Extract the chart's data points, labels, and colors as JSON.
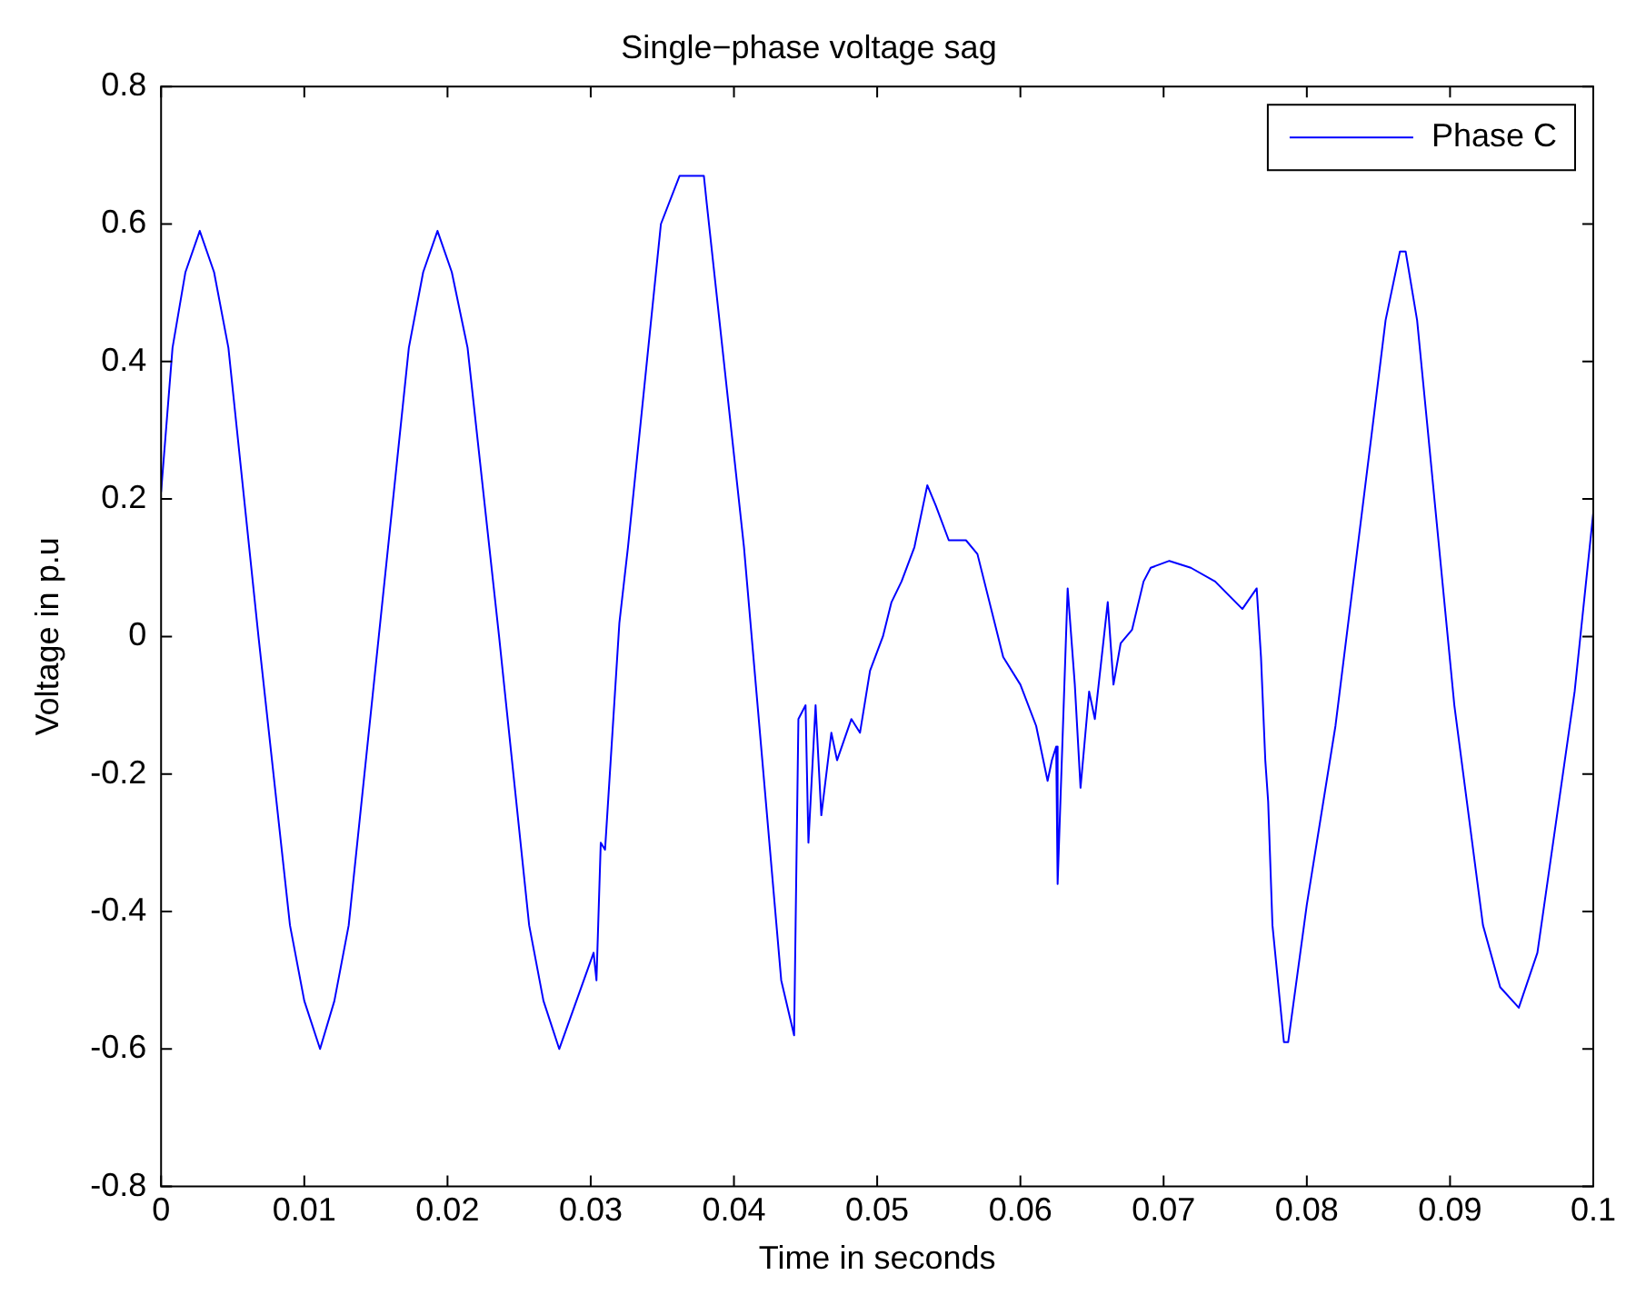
{
  "chart_data": {
    "type": "line",
    "title": "Single−phase voltage sag",
    "xlabel": "Time in seconds",
    "ylabel": "Voltage in p.u",
    "legend": "top right",
    "grid": false,
    "marker": "none",
    "line_style": "solid",
    "xlim": [
      0,
      0.1
    ],
    "xticks": [
      0,
      0.01,
      0.02,
      0.03,
      0.04,
      0.05,
      0.06,
      0.07,
      0.08,
      0.09,
      {
        "value": 0.1,
        "label": "0.1"
      }
    ],
    "ylim": [
      -0.8,
      0.8
    ],
    "yticks": [
      -0.8,
      -0.6,
      -0.4,
      -0.2,
      0,
      0.2,
      0.4,
      0.6,
      0.8
    ],
    "series": [
      {
        "name": "Phase C",
        "color": "#0000ff",
        "x": [
          0,
          0.0008,
          0.0017,
          0.0027,
          0.0037,
          0.0047,
          0.0068,
          0.009,
          0.01,
          0.0111,
          0.0121,
          0.0131,
          0.0152,
          0.0173,
          0.0183,
          0.0193,
          0.0203,
          0.0214,
          0.0236,
          0.0257,
          0.0267,
          0.0278,
          0.0302,
          0.0304,
          0.0307,
          0.031,
          0.032,
          0.0326,
          0.0349,
          0.0362,
          0.0379,
          0.0381,
          0.0407,
          0.0433,
          0.0442,
          0.0445,
          0.045,
          0.0452,
          0.0457,
          0.0461,
          0.0468,
          0.0472,
          0.0482,
          0.0488,
          0.0495,
          0.0504,
          0.051,
          0.0517,
          0.0526,
          0.0535,
          0.0541,
          0.055,
          0.0562,
          0.057,
          0.0588,
          0.06,
          0.0611,
          0.0619,
          0.0622,
          0.0625,
          0.0626,
          0.0633,
          0.0638,
          0.0642,
          0.0648,
          0.0652,
          0.0661,
          0.0665,
          0.067,
          0.0678,
          0.0686,
          0.0691,
          0.0704,
          0.0719,
          0.0736,
          0.0755,
          0.0765,
          0.0768,
          0.0771,
          0.0773,
          0.0776,
          0.0784,
          0.0787,
          0.08,
          0.082,
          0.0845,
          0.0855,
          0.0865,
          0.0869,
          0.0877,
          0.0884,
          0.0903,
          0.0923,
          0.0935,
          0.0948,
          0.0961,
          0.0987,
          0.1
        ],
        "values": [
          0.21,
          0.42,
          0.53,
          0.59,
          0.53,
          0.42,
          0,
          -0.42,
          -0.53,
          -0.6,
          -0.53,
          -0.42,
          0,
          0.42,
          0.53,
          0.59,
          0.53,
          0.42,
          0,
          -0.42,
          -0.53,
          -0.6,
          -0.46,
          -0.5,
          -0.3,
          -0.31,
          0.02,
          0.13,
          0.6,
          0.67,
          0.67,
          0.63,
          0.13,
          -0.5,
          -0.58,
          -0.12,
          -0.1,
          -0.3,
          -0.1,
          -0.26,
          -0.14,
          -0.18,
          -0.12,
          -0.14,
          -0.05,
          0,
          0.05,
          0.08,
          0.13,
          0.22,
          0.19,
          0.14,
          0.14,
          0.12,
          -0.03,
          -0.07,
          -0.13,
          -0.21,
          -0.18,
          -0.16,
          -0.36,
          0.07,
          -0.07,
          -0.22,
          -0.08,
          -0.12,
          0.05,
          -0.07,
          -0.01,
          0.01,
          0.08,
          0.1,
          0.11,
          0.1,
          0.08,
          0.04,
          0.07,
          -0.03,
          -0.18,
          -0.24,
          -0.42,
          -0.59,
          -0.59,
          -0.39,
          -0.13,
          0.29,
          0.46,
          0.56,
          0.56,
          0.46,
          0.31,
          -0.1,
          -0.42,
          -0.51,
          -0.54,
          -0.46,
          -0.08,
          0.18
        ]
      }
    ]
  }
}
